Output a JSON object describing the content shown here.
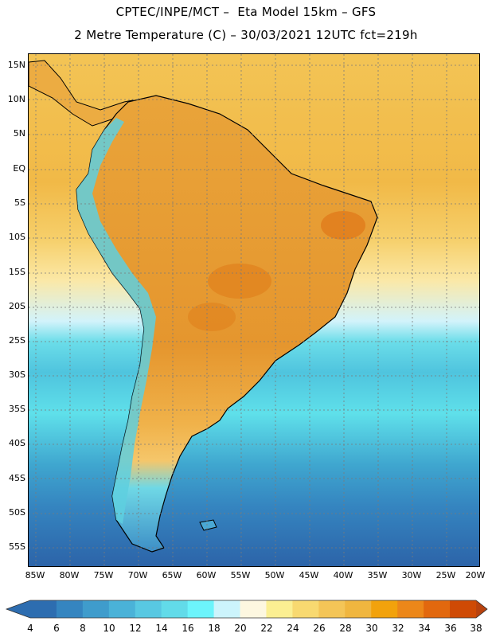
{
  "header": {
    "title_line1": "CPTEC/INPE/MCT –  Eta Model 15km – GFS",
    "title_line2": "2 Metre Temperature (C) – 30/03/2021 12UTC fct=219h"
  },
  "map": {
    "lat_labels": [
      "15N",
      "10N",
      "5N",
      "EQ",
      "5S",
      "10S",
      "15S",
      "20S",
      "25S",
      "30S",
      "35S",
      "40S",
      "45S",
      "50S",
      "55S"
    ],
    "lon_labels": [
      "85W",
      "80W",
      "75W",
      "70W",
      "65W",
      "60W",
      "55W",
      "50W",
      "45W",
      "40W",
      "35W",
      "30W",
      "25W",
      "20W"
    ],
    "ocean_bands": [
      {
        "name": "tropical-warm",
        "color": "#f4c04e"
      },
      {
        "name": "subtropical",
        "color": "#fce08a"
      },
      {
        "name": "cool",
        "color": "#5fe0e8"
      },
      {
        "name": "cold",
        "color": "#3aa8d0"
      },
      {
        "name": "coldest",
        "color": "#2e70b0"
      }
    ],
    "land_color": "#e9a43a",
    "andes_color": "#5ecfdf"
  },
  "colorbar": {
    "labels": [
      "4",
      "6",
      "8",
      "10",
      "12",
      "14",
      "16",
      "18",
      "20",
      "22",
      "24",
      "26",
      "28",
      "30",
      "32",
      "34",
      "36",
      "38"
    ],
    "colors": [
      "#2d6db0",
      "#3585c0",
      "#3f9ccc",
      "#4ab2d8",
      "#58c8e2",
      "#62dbe9",
      "#6cf4fb",
      "#ccf4fc",
      "#fdf7e0",
      "#fbef92",
      "#f8d970",
      "#f4c557",
      "#f0b63f",
      "#f2a20c",
      "#ec8719",
      "#e2680e",
      "#cf4a05"
    ],
    "low_color": "#2d6db0",
    "high_color": "#b8420e"
  }
}
